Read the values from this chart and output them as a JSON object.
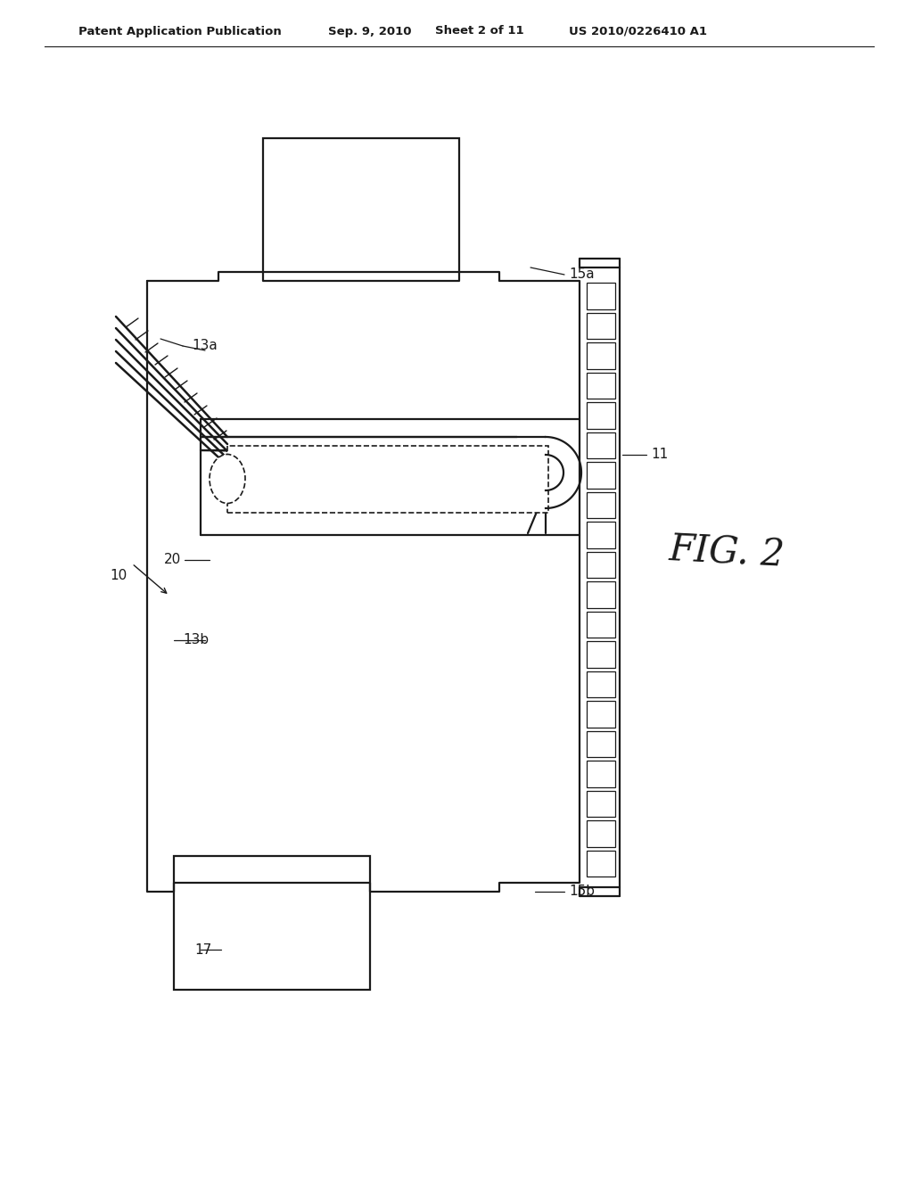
{
  "bg_color": "#ffffff",
  "line_color": "#1a1a1a",
  "header_text": "Patent Application Publication",
  "header_date": "Sep. 9, 2010",
  "header_sheet": "Sheet 2 of 11",
  "header_patent": "US 2010/0226410 A1",
  "fig_label": "FIG. 2"
}
